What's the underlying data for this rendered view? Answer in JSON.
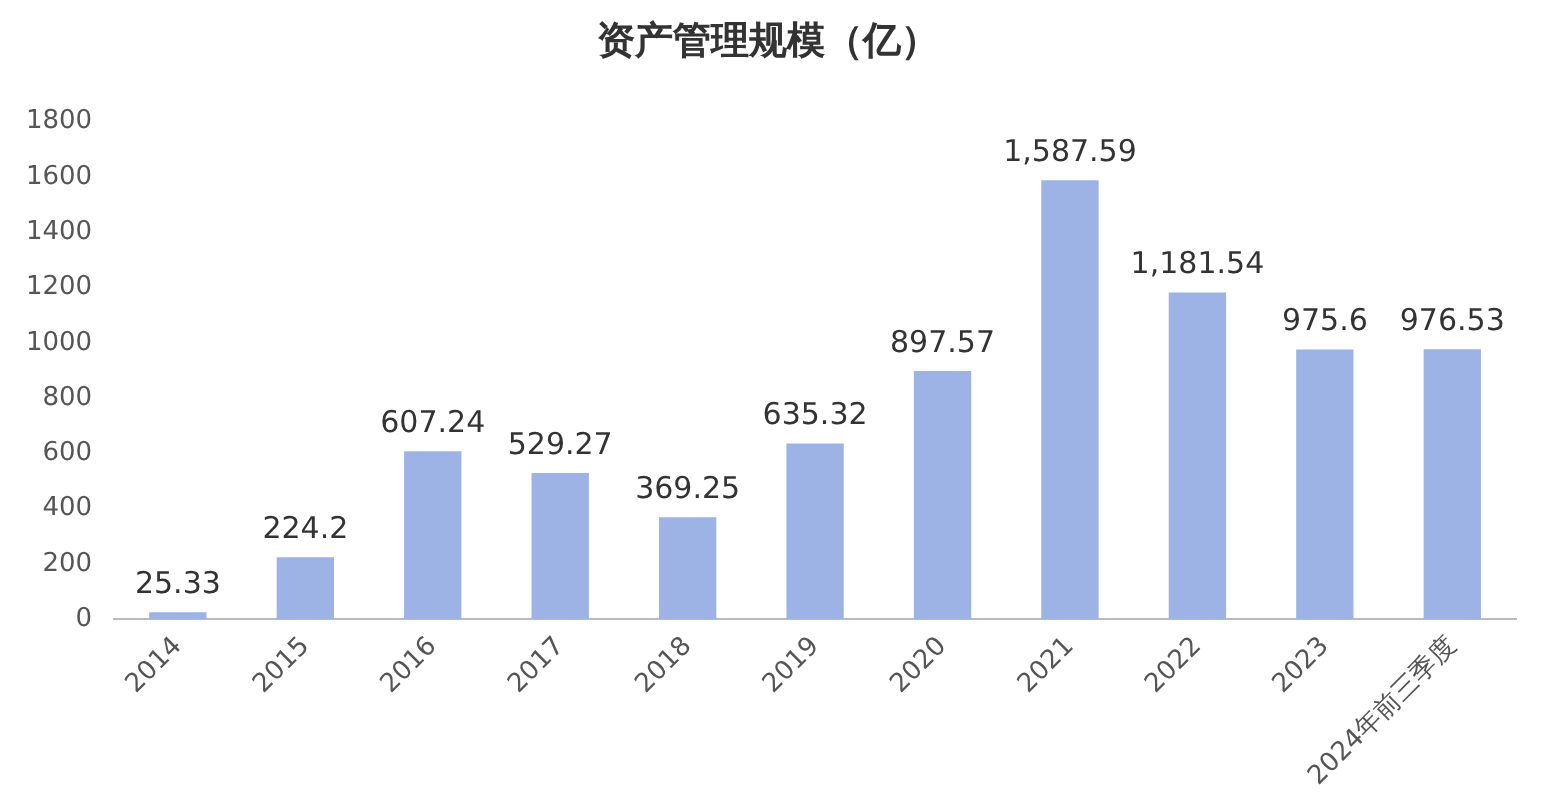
{
  "chart_data": {
    "type": "bar",
    "title": "资产管理规模（亿）",
    "categories": [
      "2014",
      "2015",
      "2016",
      "2017",
      "2018",
      "2019",
      "2020",
      "2021",
      "2022",
      "2023",
      "2024年前三季度"
    ],
    "values": [
      25.33,
      224.2,
      607.24,
      529.27,
      369.25,
      635.32,
      897.57,
      1587.59,
      1181.54,
      975.6,
      976.53
    ],
    "value_labels": [
      "25.33",
      "224.2",
      "607.24",
      "529.27",
      "369.25",
      "635.32",
      "897.57",
      "1,587.59",
      "1,181.54",
      "975.6",
      "976.53"
    ],
    "color": "#9db3e6",
    "ylim": [
      0,
      1800
    ],
    "yticks": [
      0,
      200,
      400,
      600,
      800,
      1000,
      1200,
      1400,
      1600,
      1800
    ],
    "grid": false,
    "legend": false
  }
}
